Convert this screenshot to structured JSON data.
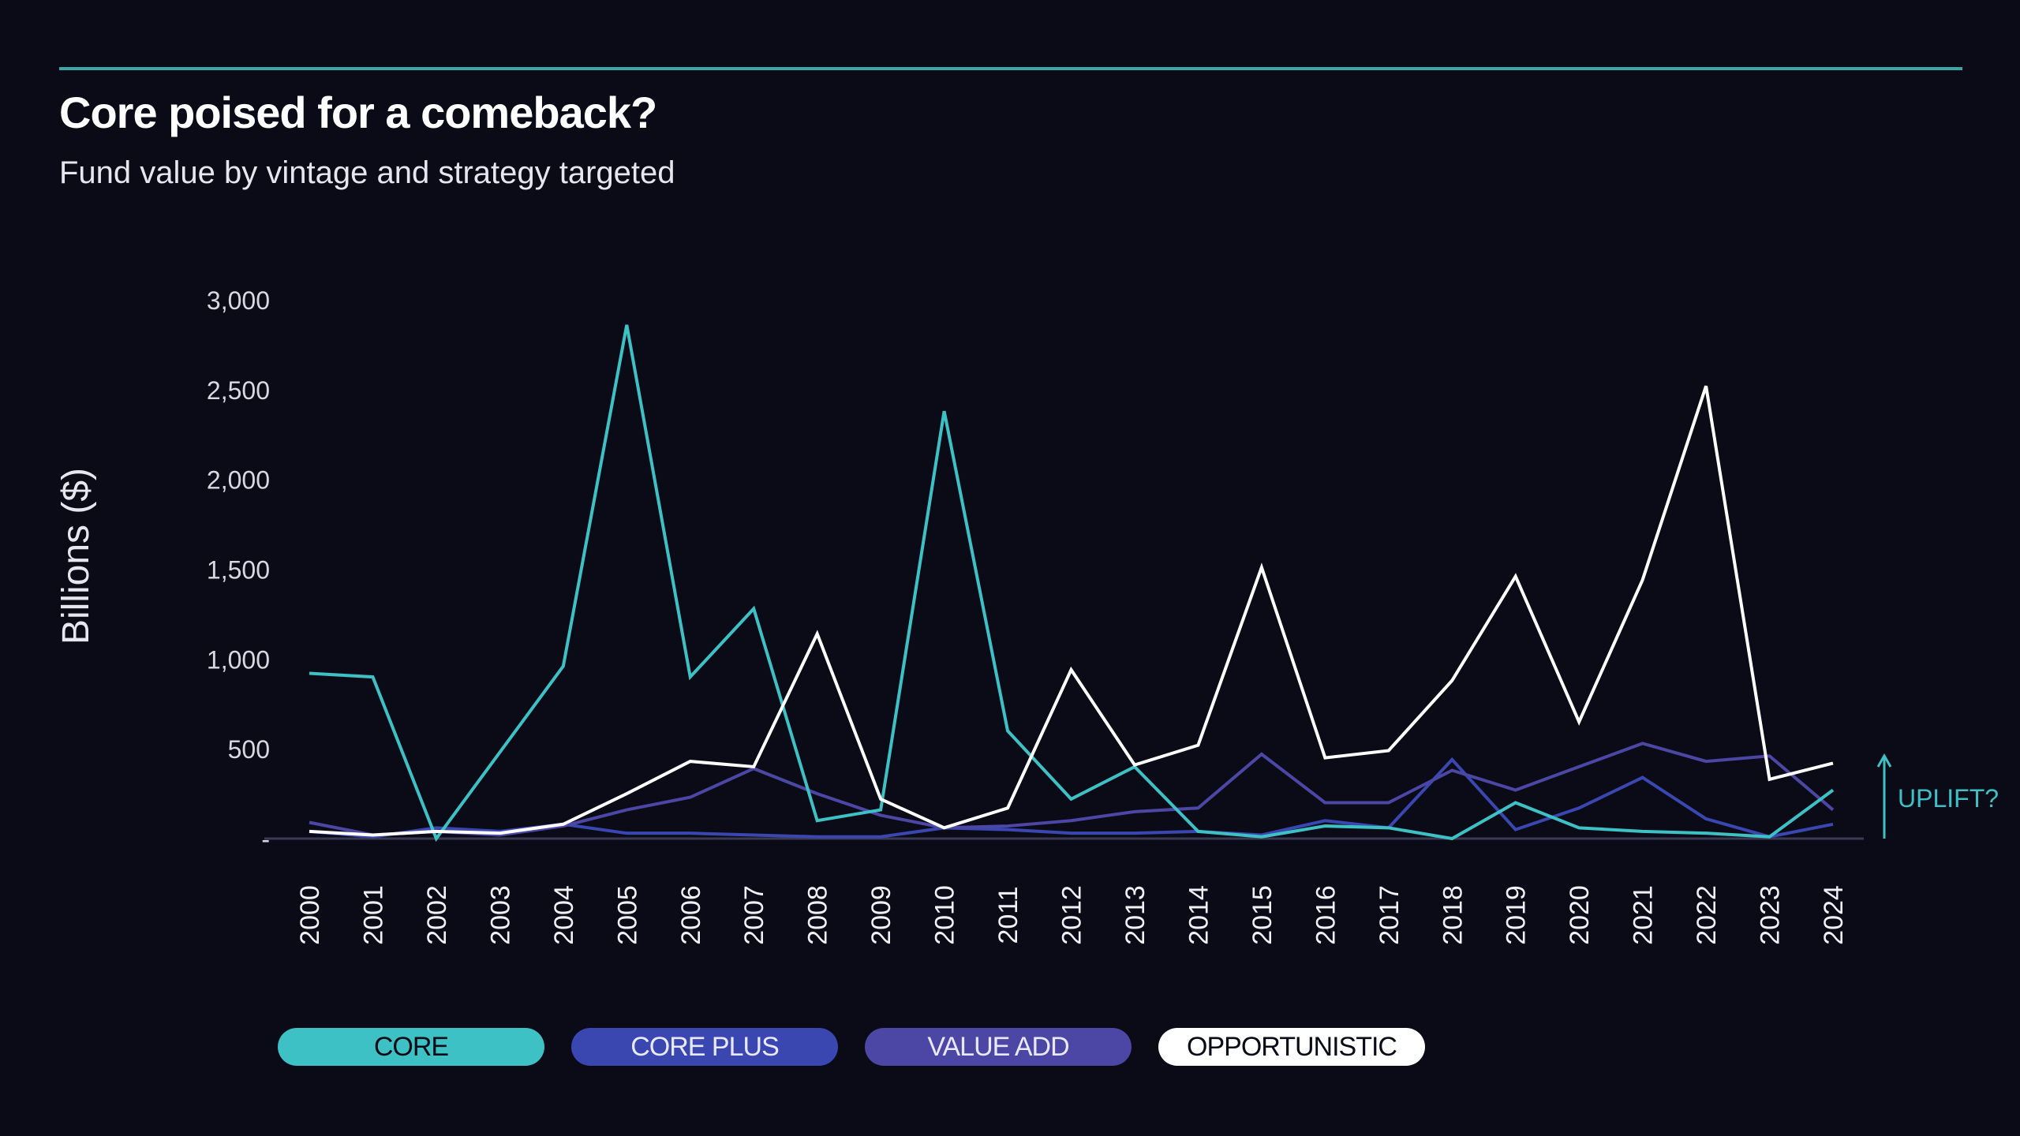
{
  "title": "Core poised for a comeback?",
  "subtitle": "Fund value by vintage and strategy targeted",
  "annotation": "UPLIFT?",
  "colors": {
    "background": "#0b0b18",
    "core": "#3ec1c4",
    "core_plus": "#3a47b0",
    "value_add": "#4c46a4",
    "opportunistic": "#ffffff"
  },
  "chart_data": {
    "type": "line",
    "ylabel": "Billions ($)",
    "xlabel": "",
    "ylim": [
      0,
      3000
    ],
    "yticks": [
      0,
      500,
      1000,
      1500,
      2000,
      2500,
      3000
    ],
    "ytick_labels": [
      "-",
      "500",
      "1,000",
      "1,500",
      "2,000",
      "2,500",
      "3,000"
    ],
    "grid": false,
    "legend_position": "bottom",
    "x": [
      "2000",
      "2001",
      "2002",
      "2003",
      "2004",
      "2005",
      "2006",
      "2007",
      "2008",
      "2009",
      "2010",
      "2011",
      "2012",
      "2013",
      "2014",
      "2015",
      "2016",
      "2017",
      "2018",
      "2019",
      "2020",
      "2021",
      "2022",
      "2023",
      "2024"
    ],
    "series": [
      {
        "name": "CORE",
        "color": "#3ec1c4",
        "values": [
          920,
          900,
          0,
          480,
          960,
          2860,
          900,
          1280,
          100,
          160,
          2380,
          600,
          220,
          400,
          40,
          10,
          70,
          60,
          0,
          200,
          60,
          40,
          30,
          10,
          270
        ]
      },
      {
        "name": "CORE PLUS",
        "color": "#3a47b0",
        "values": [
          40,
          10,
          60,
          40,
          80,
          30,
          30,
          20,
          10,
          10,
          60,
          50,
          30,
          30,
          40,
          20,
          100,
          60,
          440,
          50,
          170,
          340,
          110,
          10,
          80
        ]
      },
      {
        "name": "VALUE ADD",
        "color": "#4c46a4",
        "values": [
          90,
          20,
          40,
          20,
          70,
          160,
          230,
          390,
          250,
          130,
          60,
          70,
          100,
          150,
          170,
          470,
          200,
          200,
          380,
          270,
          400,
          530,
          430,
          460,
          160
        ]
      },
      {
        "name": "OPPORTUNISTIC",
        "color": "#ffffff",
        "values": [
          40,
          20,
          40,
          30,
          80,
          250,
          430,
          400,
          1140,
          220,
          60,
          170,
          940,
          410,
          520,
          1510,
          450,
          490,
          880,
          1460,
          650,
          1440,
          2520,
          330,
          420
        ]
      }
    ]
  }
}
